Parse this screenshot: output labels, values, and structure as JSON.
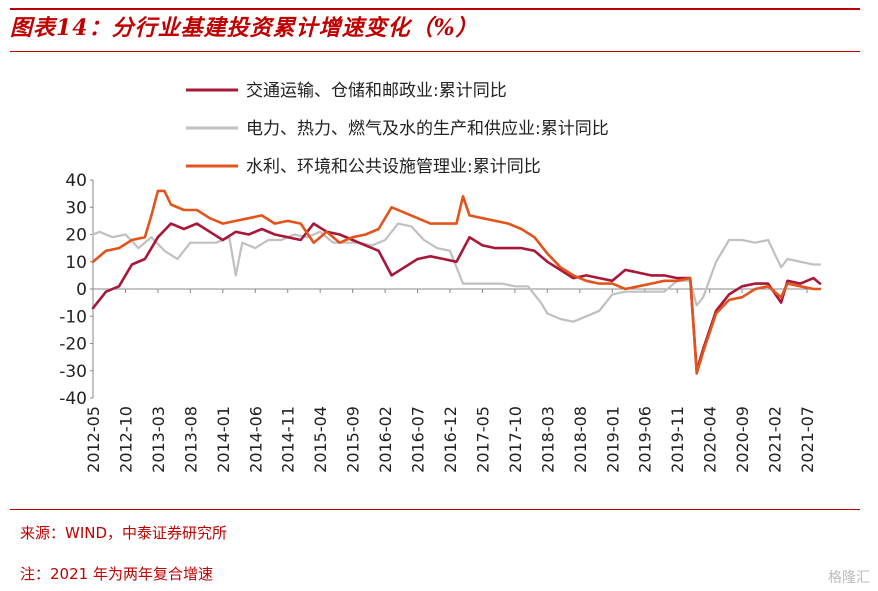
{
  "header": {
    "title": "图表14：分行业基建投资累计增速变化（%）"
  },
  "footer": {
    "source": "来源：WIND，中泰证券研究所",
    "note": "注：2021 年为两年复合增速",
    "watermark": "格隆汇"
  },
  "chart_data": {
    "type": "line",
    "title": "图表14：分行业基建投资累计增速变化（%）",
    "xlabel": "",
    "ylabel": "",
    "ylim": [
      -40,
      40
    ],
    "yticks": [
      40,
      30,
      20,
      10,
      0,
      -10,
      -20,
      -30,
      -40
    ],
    "x_tick_labels": [
      "2012-05",
      "2012-10",
      "2013-03",
      "2013-08",
      "2014-01",
      "2014-06",
      "2014-11",
      "2015-04",
      "2015-09",
      "2016-02",
      "2016-07",
      "2016-12",
      "2017-05",
      "2017-10",
      "2018-03",
      "2018-08",
      "2019-01",
      "2019-06",
      "2019-11",
      "2020-04",
      "2020-09",
      "2021-02",
      "2021-07"
    ],
    "x_start": "2012-05",
    "x_end": "2021-09",
    "legend_position": "top",
    "grid": false,
    "series": [
      {
        "name": "交通运输、仓储和邮政业:累计同比",
        "color": "#a8173a",
        "points": [
          [
            "2012-05",
            -7
          ],
          [
            "2012-07",
            -1
          ],
          [
            "2012-09",
            1
          ],
          [
            "2012-11",
            9
          ],
          [
            "2013-01",
            11
          ],
          [
            "2013-03",
            19
          ],
          [
            "2013-05",
            24
          ],
          [
            "2013-07",
            22
          ],
          [
            "2013-09",
            24
          ],
          [
            "2013-11",
            21
          ],
          [
            "2014-01",
            18
          ],
          [
            "2014-03",
            21
          ],
          [
            "2014-05",
            20
          ],
          [
            "2014-07",
            22
          ],
          [
            "2014-09",
            20
          ],
          [
            "2014-11",
            19
          ],
          [
            "2015-01",
            18
          ],
          [
            "2015-03",
            24
          ],
          [
            "2015-05",
            21
          ],
          [
            "2015-07",
            20
          ],
          [
            "2015-09",
            18
          ],
          [
            "2015-11",
            16
          ],
          [
            "2016-01",
            14
          ],
          [
            "2016-03",
            5
          ],
          [
            "2016-05",
            8
          ],
          [
            "2016-07",
            11
          ],
          [
            "2016-09",
            12
          ],
          [
            "2016-11",
            11
          ],
          [
            "2017-01",
            10
          ],
          [
            "2017-03",
            19
          ],
          [
            "2017-05",
            16
          ],
          [
            "2017-07",
            15
          ],
          [
            "2017-09",
            15
          ],
          [
            "2017-11",
            15
          ],
          [
            "2018-01",
            14
          ],
          [
            "2018-03",
            10
          ],
          [
            "2018-05",
            7
          ],
          [
            "2018-07",
            4
          ],
          [
            "2018-09",
            5
          ],
          [
            "2018-11",
            4
          ],
          [
            "2019-01",
            3
          ],
          [
            "2019-03",
            7
          ],
          [
            "2019-05",
            6
          ],
          [
            "2019-07",
            5
          ],
          [
            "2019-09",
            5
          ],
          [
            "2019-11",
            4
          ],
          [
            "2020-01",
            4
          ],
          [
            "2020-02",
            -30
          ],
          [
            "2020-03",
            -22
          ],
          [
            "2020-05",
            -8
          ],
          [
            "2020-07",
            -2
          ],
          [
            "2020-09",
            1
          ],
          [
            "2020-11",
            2
          ],
          [
            "2021-01",
            2
          ],
          [
            "2021-03",
            -5
          ],
          [
            "2021-04",
            3
          ],
          [
            "2021-06",
            2
          ],
          [
            "2021-08",
            4
          ],
          [
            "2021-09",
            2
          ]
        ]
      },
      {
        "name": "电力、热力、燃气及水的生产和供应业:累计同比",
        "color": "#c0c0c0",
        "points": [
          [
            "2012-05",
            20
          ],
          [
            "2012-06",
            21
          ],
          [
            "2012-08",
            19
          ],
          [
            "2012-10",
            20
          ],
          [
            "2012-12",
            15
          ],
          [
            "2013-02",
            19
          ],
          [
            "2013-04",
            14
          ],
          [
            "2013-06",
            11
          ],
          [
            "2013-08",
            17
          ],
          [
            "2013-10",
            17
          ],
          [
            "2013-12",
            17
          ],
          [
            "2014-02",
            19
          ],
          [
            "2014-03",
            5
          ],
          [
            "2014-04",
            17
          ],
          [
            "2014-06",
            15
          ],
          [
            "2014-08",
            18
          ],
          [
            "2014-10",
            18
          ],
          [
            "2014-12",
            20
          ],
          [
            "2015-02",
            19
          ],
          [
            "2015-04",
            21
          ],
          [
            "2015-06",
            17
          ],
          [
            "2015-08",
            17
          ],
          [
            "2015-10",
            17
          ],
          [
            "2015-12",
            16
          ],
          [
            "2016-02",
            18
          ],
          [
            "2016-04",
            24
          ],
          [
            "2016-06",
            23
          ],
          [
            "2016-08",
            18
          ],
          [
            "2016-10",
            15
          ],
          [
            "2016-12",
            14
          ],
          [
            "2017-02",
            2
          ],
          [
            "2017-04",
            2
          ],
          [
            "2017-06",
            2
          ],
          [
            "2017-08",
            2
          ],
          [
            "2017-10",
            1
          ],
          [
            "2017-12",
            1
          ],
          [
            "2018-02",
            -5
          ],
          [
            "2018-03",
            -9
          ],
          [
            "2018-05",
            -11
          ],
          [
            "2018-07",
            -12
          ],
          [
            "2018-09",
            -10
          ],
          [
            "2018-11",
            -8
          ],
          [
            "2019-01",
            -2
          ],
          [
            "2019-03",
            -1
          ],
          [
            "2019-05",
            -1
          ],
          [
            "2019-07",
            -1
          ],
          [
            "2019-09",
            -1
          ],
          [
            "2019-11",
            3
          ],
          [
            "2020-01",
            3
          ],
          [
            "2020-02",
            -6
          ],
          [
            "2020-03",
            -3
          ],
          [
            "2020-05",
            10
          ],
          [
            "2020-07",
            18
          ],
          [
            "2020-09",
            18
          ],
          [
            "2020-11",
            17
          ],
          [
            "2021-01",
            18
          ],
          [
            "2021-03",
            8
          ],
          [
            "2021-04",
            11
          ],
          [
            "2021-06",
            10
          ],
          [
            "2021-08",
            9
          ],
          [
            "2021-09",
            9
          ]
        ]
      },
      {
        "name": "水利、环境和公共设施管理业:累计同比",
        "color": "#e2541c",
        "points": [
          [
            "2012-05",
            10
          ],
          [
            "2012-07",
            14
          ],
          [
            "2012-09",
            15
          ],
          [
            "2012-11",
            18
          ],
          [
            "2013-01",
            19
          ],
          [
            "2013-02",
            27
          ],
          [
            "2013-03",
            36
          ],
          [
            "2013-04",
            36
          ],
          [
            "2013-05",
            31
          ],
          [
            "2013-07",
            29
          ],
          [
            "2013-09",
            29
          ],
          [
            "2013-11",
            26
          ],
          [
            "2014-01",
            24
          ],
          [
            "2014-03",
            25
          ],
          [
            "2014-05",
            26
          ],
          [
            "2014-07",
            27
          ],
          [
            "2014-09",
            24
          ],
          [
            "2014-11",
            25
          ],
          [
            "2015-01",
            24
          ],
          [
            "2015-03",
            17
          ],
          [
            "2015-05",
            21
          ],
          [
            "2015-07",
            17
          ],
          [
            "2015-09",
            19
          ],
          [
            "2015-11",
            20
          ],
          [
            "2016-01",
            22
          ],
          [
            "2016-03",
            30
          ],
          [
            "2016-05",
            28
          ],
          [
            "2016-07",
            26
          ],
          [
            "2016-09",
            24
          ],
          [
            "2016-11",
            24
          ],
          [
            "2017-01",
            24
          ],
          [
            "2017-02",
            34
          ],
          [
            "2017-03",
            27
          ],
          [
            "2017-05",
            26
          ],
          [
            "2017-07",
            25
          ],
          [
            "2017-09",
            24
          ],
          [
            "2017-11",
            22
          ],
          [
            "2018-01",
            19
          ],
          [
            "2018-03",
            13
          ],
          [
            "2018-05",
            8
          ],
          [
            "2018-07",
            5
          ],
          [
            "2018-09",
            3
          ],
          [
            "2018-11",
            2
          ],
          [
            "2019-01",
            2
          ],
          [
            "2019-03",
            0
          ],
          [
            "2019-05",
            1
          ],
          [
            "2019-07",
            2
          ],
          [
            "2019-09",
            3
          ],
          [
            "2019-11",
            3
          ],
          [
            "2020-01",
            4
          ],
          [
            "2020-02",
            -31
          ],
          [
            "2020-03",
            -23
          ],
          [
            "2020-05",
            -9
          ],
          [
            "2020-07",
            -4
          ],
          [
            "2020-09",
            -3
          ],
          [
            "2020-11",
            0
          ],
          [
            "2021-01",
            1
          ],
          [
            "2021-03",
            -3
          ],
          [
            "2021-04",
            2
          ],
          [
            "2021-06",
            1
          ],
          [
            "2021-08",
            0
          ],
          [
            "2021-09",
            0
          ]
        ]
      }
    ]
  }
}
